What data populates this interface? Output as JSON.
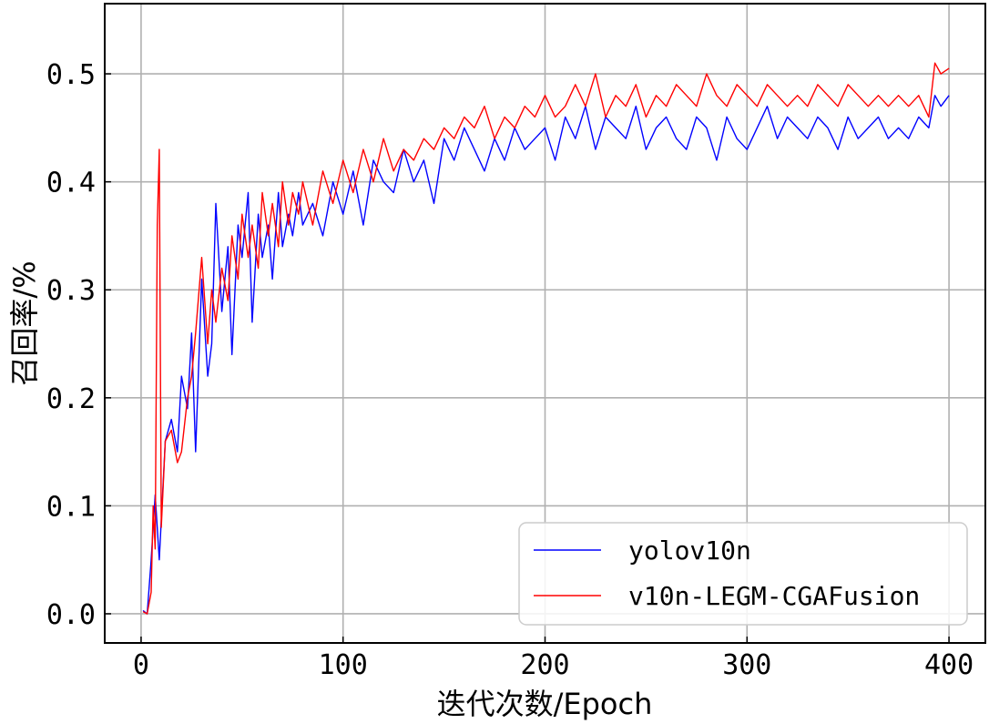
{
  "chart_data": {
    "type": "line",
    "title": "",
    "xlabel": "迭代次数/Epoch",
    "ylabel": "召回率/%",
    "xlim": [
      -18,
      418
    ],
    "ylim": [
      -0.027,
      0.565
    ],
    "xticks": [
      0,
      100,
      200,
      300,
      400
    ],
    "xtick_labels": [
      "0",
      "100",
      "200",
      "300",
      "400"
    ],
    "yticks": [
      0.0,
      0.1,
      0.2,
      0.3,
      0.4,
      0.5
    ],
    "ytick_labels": [
      "0.0",
      "0.1",
      "0.2",
      "0.3",
      "0.4",
      "0.5"
    ],
    "grid": true,
    "legend_position": "bottom-right",
    "series": [
      {
        "name": "yolov10n",
        "color": "#0000ff",
        "x": [
          1,
          3,
          5,
          7,
          9,
          12,
          15,
          18,
          20,
          23,
          25,
          27,
          30,
          33,
          35,
          37,
          40,
          43,
          45,
          48,
          50,
          53,
          55,
          58,
          60,
          63,
          65,
          68,
          70,
          73,
          75,
          78,
          80,
          85,
          90,
          95,
          100,
          105,
          110,
          115,
          120,
          125,
          130,
          135,
          140,
          145,
          150,
          155,
          160,
          165,
          170,
          175,
          180,
          185,
          190,
          195,
          200,
          205,
          210,
          215,
          220,
          225,
          230,
          235,
          240,
          245,
          250,
          255,
          260,
          265,
          270,
          275,
          280,
          285,
          290,
          295,
          300,
          305,
          310,
          315,
          320,
          325,
          330,
          335,
          340,
          345,
          350,
          355,
          360,
          365,
          370,
          375,
          380,
          385,
          390,
          393,
          396,
          400
        ],
        "y": [
          0.003,
          0.0,
          0.05,
          0.11,
          0.05,
          0.16,
          0.18,
          0.15,
          0.22,
          0.19,
          0.26,
          0.15,
          0.31,
          0.22,
          0.25,
          0.38,
          0.28,
          0.34,
          0.24,
          0.36,
          0.33,
          0.39,
          0.27,
          0.37,
          0.33,
          0.36,
          0.31,
          0.39,
          0.34,
          0.37,
          0.35,
          0.39,
          0.36,
          0.38,
          0.35,
          0.4,
          0.37,
          0.41,
          0.36,
          0.42,
          0.4,
          0.39,
          0.43,
          0.4,
          0.42,
          0.38,
          0.44,
          0.42,
          0.45,
          0.43,
          0.41,
          0.44,
          0.42,
          0.45,
          0.43,
          0.44,
          0.45,
          0.42,
          0.46,
          0.44,
          0.47,
          0.43,
          0.46,
          0.45,
          0.44,
          0.47,
          0.43,
          0.45,
          0.46,
          0.44,
          0.43,
          0.46,
          0.45,
          0.42,
          0.46,
          0.44,
          0.43,
          0.45,
          0.47,
          0.44,
          0.46,
          0.45,
          0.44,
          0.46,
          0.45,
          0.43,
          0.46,
          0.44,
          0.45,
          0.46,
          0.44,
          0.45,
          0.44,
          0.46,
          0.45,
          0.48,
          0.47,
          0.48
        ]
      },
      {
        "name": "v10n-LEGM-CGAFusion",
        "color": "#ff0000",
        "x": [
          1,
          3,
          5,
          6,
          7,
          8,
          9,
          10,
          12,
          15,
          18,
          20,
          23,
          25,
          27,
          30,
          33,
          35,
          37,
          40,
          43,
          45,
          48,
          50,
          53,
          55,
          58,
          60,
          63,
          65,
          68,
          70,
          73,
          75,
          78,
          80,
          85,
          90,
          95,
          100,
          105,
          110,
          115,
          120,
          125,
          130,
          135,
          140,
          145,
          150,
          155,
          160,
          165,
          170,
          175,
          180,
          185,
          190,
          195,
          200,
          205,
          210,
          215,
          220,
          225,
          230,
          235,
          240,
          245,
          250,
          255,
          260,
          265,
          270,
          275,
          280,
          285,
          290,
          295,
          300,
          305,
          310,
          315,
          320,
          325,
          330,
          335,
          340,
          345,
          350,
          355,
          360,
          365,
          370,
          375,
          380,
          385,
          390,
          393,
          396,
          400
        ],
        "y": [
          0.002,
          0.0,
          0.02,
          0.1,
          0.06,
          0.36,
          0.43,
          0.08,
          0.16,
          0.17,
          0.14,
          0.15,
          0.2,
          0.22,
          0.26,
          0.33,
          0.25,
          0.3,
          0.27,
          0.32,
          0.29,
          0.35,
          0.31,
          0.37,
          0.33,
          0.36,
          0.32,
          0.39,
          0.35,
          0.38,
          0.34,
          0.4,
          0.36,
          0.39,
          0.37,
          0.4,
          0.36,
          0.41,
          0.38,
          0.42,
          0.39,
          0.43,
          0.4,
          0.44,
          0.41,
          0.43,
          0.42,
          0.44,
          0.43,
          0.45,
          0.44,
          0.46,
          0.45,
          0.47,
          0.44,
          0.46,
          0.45,
          0.47,
          0.46,
          0.48,
          0.46,
          0.47,
          0.49,
          0.47,
          0.5,
          0.46,
          0.48,
          0.47,
          0.49,
          0.46,
          0.48,
          0.47,
          0.49,
          0.48,
          0.47,
          0.5,
          0.48,
          0.47,
          0.49,
          0.48,
          0.47,
          0.49,
          0.48,
          0.47,
          0.48,
          0.47,
          0.49,
          0.48,
          0.47,
          0.49,
          0.48,
          0.47,
          0.48,
          0.47,
          0.48,
          0.47,
          0.48,
          0.46,
          0.51,
          0.5,
          0.505
        ]
      }
    ]
  }
}
